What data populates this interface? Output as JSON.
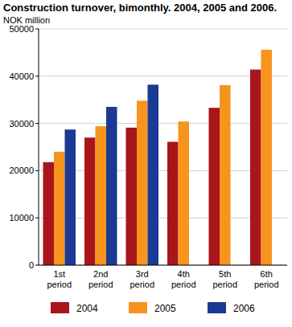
{
  "chart_data": {
    "type": "bar",
    "title": "Construction turnover, bimonthly. 2004, 2005 and 2006.",
    "y_label": "NOK million",
    "categories": [
      "1st period",
      "2nd period",
      "3rd period",
      "4th period",
      "5th period",
      "6th period"
    ],
    "series": [
      {
        "name": "2004",
        "color": "#a8151b",
        "values": [
          21800,
          27000,
          29100,
          26100,
          33300,
          41400
        ]
      },
      {
        "name": "2005",
        "color": "#f7941e",
        "values": [
          24000,
          29400,
          34800,
          30400,
          38100,
          45600
        ]
      },
      {
        "name": "2006",
        "color": "#1b3a93",
        "values": [
          28700,
          33500,
          38200,
          null,
          null,
          null
        ]
      }
    ],
    "ylim": [
      0,
      50000
    ],
    "yticks": [
      0,
      10000,
      20000,
      30000,
      40000,
      50000
    ],
    "grid": true,
    "legend": "bottom"
  }
}
